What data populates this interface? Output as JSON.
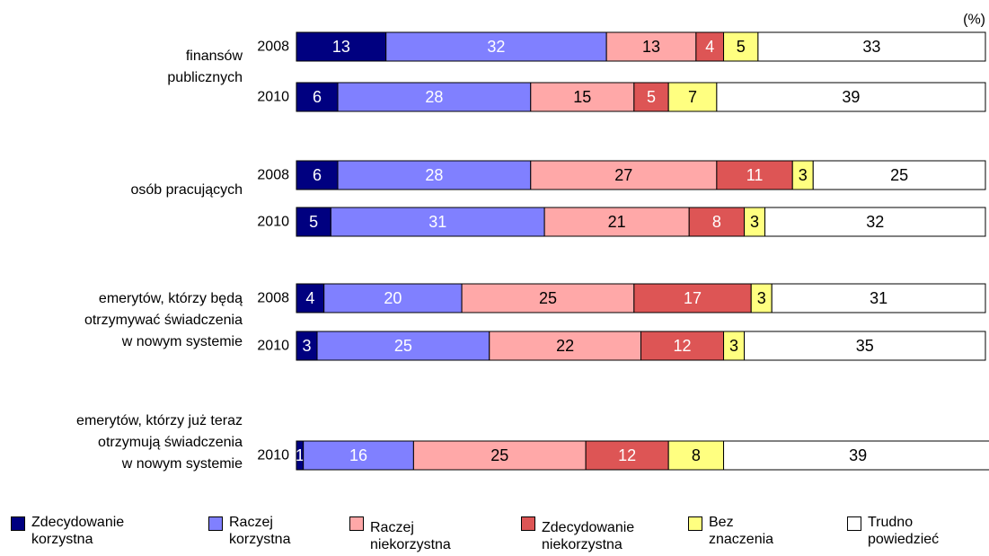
{
  "chart_data": {
    "type": "stacked_bar_horizontal",
    "unit_label": "(%)",
    "categories": [
      "2008",
      "2010",
      "2008",
      "2010",
      "2008",
      "2010",
      "2010"
    ],
    "group_labels": [
      "finansów\npublicznych",
      null,
      "osób pracujących",
      null,
      "emerytów, którzy będą\notrzymywać świadczenia\nw nowym systemie",
      null,
      "emerytów, którzy już teraz\notrzymują świadczenia\nw nowym systemie"
    ],
    "xlim": [
      0,
      100
    ],
    "series": [
      {
        "name": "Zdecydowanie\nkorzystna",
        "color": "#000080",
        "label_color": "#ffffff",
        "values": [
          13,
          6,
          6,
          5,
          4,
          3,
          1
        ]
      },
      {
        "name": "Raczej\nkorzystna",
        "color": "#8080ff",
        "label_color": "#ffffff",
        "values": [
          32,
          28,
          28,
          31,
          20,
          25,
          16
        ]
      },
      {
        "name": "Raczej\nniekorzystna",
        "color": "#ffa8a8",
        "label_color": "#000000",
        "values": [
          13,
          15,
          27,
          21,
          25,
          22,
          25
        ]
      },
      {
        "name": "Zdecydowanie\nniekorzystna",
        "color": "#dd5555",
        "label_color": "#ffffff",
        "values": [
          4,
          5,
          11,
          8,
          17,
          12,
          12
        ]
      },
      {
        "name": "Bez\nznaczenia",
        "color": "#ffff80",
        "label_color": "#000000",
        "values": [
          5,
          7,
          3,
          3,
          3,
          3,
          8
        ]
      },
      {
        "name": "Trudno\npowiedzieć",
        "color": "#ffffff",
        "label_color": "#000000",
        "values": [
          33,
          39,
          25,
          32,
          31,
          35,
          39
        ]
      }
    ]
  }
}
